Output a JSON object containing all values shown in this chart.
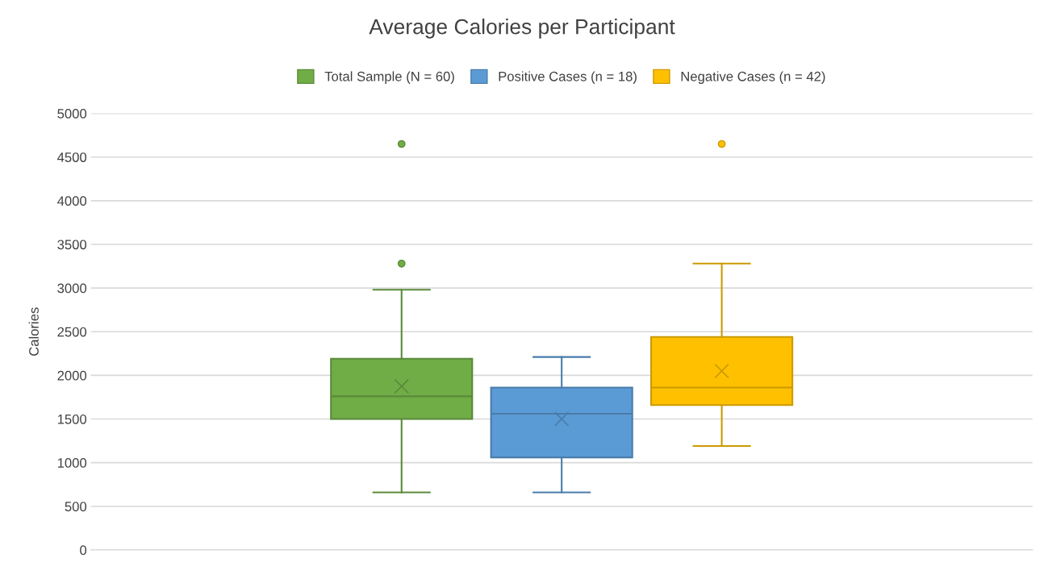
{
  "chart_data": {
    "type": "box",
    "title": "Average Calories per Participant",
    "ylabel": "Calories",
    "categories": [
      null
    ],
    "series": [
      {
        "name": "Total Sample (N = 60)",
        "color": "#70ad47",
        "boxes": [
          {
            "low": 660,
            "q1": 1500,
            "median": 1760,
            "q3": 2190,
            "high": 2980,
            "mean": 1875,
            "outliers": [
              3280,
              4650
            ]
          }
        ]
      },
      {
        "name": "Positive Cases (n = 18)",
        "color": "#5b9bd5",
        "boxes": [
          {
            "low": 660,
            "q1": 1060,
            "median": 1560,
            "q3": 1860,
            "high": 2210,
            "mean": 1500
          }
        ]
      },
      {
        "name": "Negative Cases (n = 42)",
        "color": "#ffc000",
        "boxes": [
          {
            "low": 1190,
            "q1": 1660,
            "median": 1860,
            "q3": 2440,
            "high": 3280,
            "mean": 2050,
            "outliers": [
              4650
            ]
          }
        ]
      }
    ],
    "ylim": [
      0,
      5000
    ],
    "yticks": [
      0,
      500,
      1000,
      1500,
      2000,
      2500,
      3000,
      3500,
      4000,
      4500,
      5000
    ],
    "grid": "y",
    "legend": "top",
    "marker": "circle"
  }
}
